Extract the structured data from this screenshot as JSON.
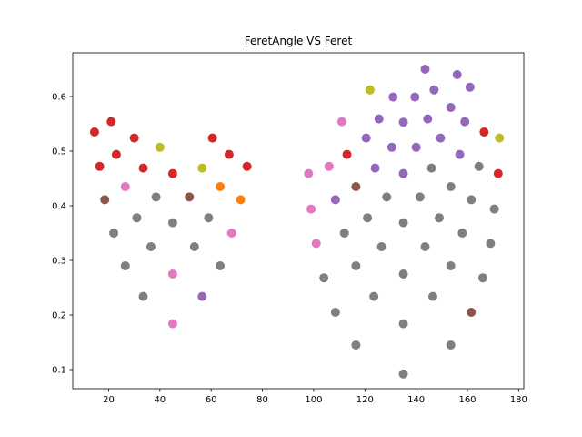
{
  "chart_data": {
    "type": "scatter",
    "title": "FeretAngle VS Feret",
    "xlabel": "",
    "ylabel": "",
    "xlim": [
      6,
      182
    ],
    "ylim": [
      0.065,
      0.68
    ],
    "xticks": [
      20,
      40,
      60,
      80,
      100,
      120,
      140,
      160,
      180
    ],
    "yticks": [
      0.1,
      0.2,
      0.3,
      0.4,
      0.5,
      0.6
    ],
    "grid": false,
    "legend": "none",
    "colors": {
      "red": "#d62728",
      "gray": "#7f7f7f",
      "purple": "#9467bd",
      "pink": "#e377c2",
      "olive": "#bcbd22",
      "orange": "#ff7f0e",
      "brown": "#8c564b"
    },
    "points": [
      {
        "x": 14.5,
        "y": 0.535,
        "c": "red"
      },
      {
        "x": 21.0,
        "y": 0.554,
        "c": "red"
      },
      {
        "x": 30.0,
        "y": 0.524,
        "c": "red"
      },
      {
        "x": 16.5,
        "y": 0.472,
        "c": "red"
      },
      {
        "x": 23.0,
        "y": 0.494,
        "c": "red"
      },
      {
        "x": 33.5,
        "y": 0.469,
        "c": "red"
      },
      {
        "x": 40.0,
        "y": 0.507,
        "c": "olive"
      },
      {
        "x": 45.0,
        "y": 0.459,
        "c": "red"
      },
      {
        "x": 56.5,
        "y": 0.469,
        "c": "olive"
      },
      {
        "x": 60.5,
        "y": 0.524,
        "c": "red"
      },
      {
        "x": 67.0,
        "y": 0.494,
        "c": "red"
      },
      {
        "x": 74.0,
        "y": 0.472,
        "c": "red"
      },
      {
        "x": 18.5,
        "y": 0.411,
        "c": "brown"
      },
      {
        "x": 26.5,
        "y": 0.435,
        "c": "pink"
      },
      {
        "x": 38.5,
        "y": 0.416,
        "c": "gray"
      },
      {
        "x": 51.5,
        "y": 0.416,
        "c": "brown"
      },
      {
        "x": 63.5,
        "y": 0.435,
        "c": "orange"
      },
      {
        "x": 71.5,
        "y": 0.411,
        "c": "orange"
      },
      {
        "x": 31.0,
        "y": 0.378,
        "c": "gray"
      },
      {
        "x": 45.0,
        "y": 0.369,
        "c": "gray"
      },
      {
        "x": 59.0,
        "y": 0.378,
        "c": "gray"
      },
      {
        "x": 22.0,
        "y": 0.35,
        "c": "gray"
      },
      {
        "x": 68.0,
        "y": 0.35,
        "c": "pink"
      },
      {
        "x": 36.5,
        "y": 0.325,
        "c": "gray"
      },
      {
        "x": 53.5,
        "y": 0.325,
        "c": "gray"
      },
      {
        "x": 26.5,
        "y": 0.29,
        "c": "gray"
      },
      {
        "x": 63.5,
        "y": 0.29,
        "c": "gray"
      },
      {
        "x": 45.0,
        "y": 0.275,
        "c": "pink"
      },
      {
        "x": 33.5,
        "y": 0.234,
        "c": "gray"
      },
      {
        "x": 56.5,
        "y": 0.234,
        "c": "purple"
      },
      {
        "x": 45.0,
        "y": 0.184,
        "c": "pink"
      },
      {
        "x": 143.5,
        "y": 0.65,
        "c": "purple"
      },
      {
        "x": 156.0,
        "y": 0.64,
        "c": "purple"
      },
      {
        "x": 122.0,
        "y": 0.612,
        "c": "olive"
      },
      {
        "x": 131.0,
        "y": 0.599,
        "c": "purple"
      },
      {
        "x": 139.5,
        "y": 0.599,
        "c": "purple"
      },
      {
        "x": 147.0,
        "y": 0.612,
        "c": "purple"
      },
      {
        "x": 161.0,
        "y": 0.617,
        "c": "purple"
      },
      {
        "x": 153.5,
        "y": 0.58,
        "c": "purple"
      },
      {
        "x": 111.0,
        "y": 0.554,
        "c": "pink"
      },
      {
        "x": 125.5,
        "y": 0.559,
        "c": "purple"
      },
      {
        "x": 135.0,
        "y": 0.553,
        "c": "purple"
      },
      {
        "x": 144.5,
        "y": 0.559,
        "c": "purple"
      },
      {
        "x": 159.0,
        "y": 0.554,
        "c": "purple"
      },
      {
        "x": 166.5,
        "y": 0.535,
        "c": "red"
      },
      {
        "x": 120.5,
        "y": 0.524,
        "c": "purple"
      },
      {
        "x": 149.5,
        "y": 0.524,
        "c": "purple"
      },
      {
        "x": 172.5,
        "y": 0.524,
        "c": "olive"
      },
      {
        "x": 113.0,
        "y": 0.494,
        "c": "red"
      },
      {
        "x": 130.5,
        "y": 0.507,
        "c": "purple"
      },
      {
        "x": 140.0,
        "y": 0.507,
        "c": "purple"
      },
      {
        "x": 157.0,
        "y": 0.494,
        "c": "purple"
      },
      {
        "x": 98.0,
        "y": 0.459,
        "c": "pink"
      },
      {
        "x": 106.0,
        "y": 0.472,
        "c": "pink"
      },
      {
        "x": 124.0,
        "y": 0.469,
        "c": "purple"
      },
      {
        "x": 135.0,
        "y": 0.459,
        "c": "purple"
      },
      {
        "x": 146.0,
        "y": 0.469,
        "c": "gray"
      },
      {
        "x": 164.5,
        "y": 0.472,
        "c": "gray"
      },
      {
        "x": 172.0,
        "y": 0.459,
        "c": "red"
      },
      {
        "x": 108.5,
        "y": 0.411,
        "c": "purple"
      },
      {
        "x": 116.5,
        "y": 0.435,
        "c": "brown"
      },
      {
        "x": 128.5,
        "y": 0.416,
        "c": "gray"
      },
      {
        "x": 141.5,
        "y": 0.416,
        "c": "gray"
      },
      {
        "x": 153.5,
        "y": 0.435,
        "c": "gray"
      },
      {
        "x": 161.5,
        "y": 0.411,
        "c": "gray"
      },
      {
        "x": 99.0,
        "y": 0.394,
        "c": "pink"
      },
      {
        "x": 121.0,
        "y": 0.378,
        "c": "gray"
      },
      {
        "x": 135.0,
        "y": 0.369,
        "c": "gray"
      },
      {
        "x": 149.0,
        "y": 0.378,
        "c": "gray"
      },
      {
        "x": 170.5,
        "y": 0.394,
        "c": "gray"
      },
      {
        "x": 112.0,
        "y": 0.35,
        "c": "gray"
      },
      {
        "x": 158.0,
        "y": 0.35,
        "c": "gray"
      },
      {
        "x": 101.0,
        "y": 0.331,
        "c": "pink"
      },
      {
        "x": 126.5,
        "y": 0.325,
        "c": "gray"
      },
      {
        "x": 143.5,
        "y": 0.325,
        "c": "gray"
      },
      {
        "x": 169.0,
        "y": 0.331,
        "c": "gray"
      },
      {
        "x": 104.0,
        "y": 0.268,
        "c": "gray"
      },
      {
        "x": 116.5,
        "y": 0.29,
        "c": "gray"
      },
      {
        "x": 135.0,
        "y": 0.275,
        "c": "gray"
      },
      {
        "x": 153.5,
        "y": 0.29,
        "c": "gray"
      },
      {
        "x": 166.0,
        "y": 0.268,
        "c": "gray"
      },
      {
        "x": 123.5,
        "y": 0.234,
        "c": "gray"
      },
      {
        "x": 146.5,
        "y": 0.234,
        "c": "gray"
      },
      {
        "x": 108.5,
        "y": 0.205,
        "c": "gray"
      },
      {
        "x": 161.5,
        "y": 0.205,
        "c": "brown"
      },
      {
        "x": 135.0,
        "y": 0.184,
        "c": "gray"
      },
      {
        "x": 116.5,
        "y": 0.145,
        "c": "gray"
      },
      {
        "x": 153.5,
        "y": 0.145,
        "c": "gray"
      },
      {
        "x": 135.0,
        "y": 0.092,
        "c": "gray"
      }
    ]
  }
}
